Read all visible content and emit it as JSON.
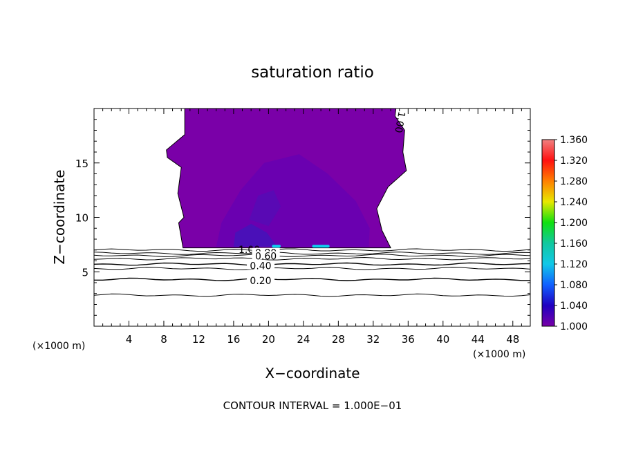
{
  "chart_data": {
    "type": "heatmap",
    "title": "saturation ratio",
    "xlabel": "X−coordinate",
    "ylabel": "Z−coordinate",
    "x_unit": "(×1000 m)",
    "x_unit_right": "(×1000 m)",
    "footer": "CONTOUR INTERVAL = 1.000E−01",
    "xlim": [
      0,
      50
    ],
    "ylim": [
      0,
      20
    ],
    "x_ticks": [
      4,
      8,
      12,
      16,
      20,
      24,
      28,
      32,
      36,
      40,
      44,
      48
    ],
    "x_tick_labels": [
      "4",
      "8",
      "12",
      "16",
      "20",
      "24",
      "28",
      "32",
      "36",
      "40",
      "44",
      "48"
    ],
    "y_ticks": [
      5,
      10,
      15
    ],
    "y_tick_labels": [
      "5",
      "10",
      "15"
    ],
    "colorbar": {
      "min": 1.0,
      "max": 1.36,
      "labels": [
        "1.360",
        "1.320",
        "1.280",
        "1.240",
        "1.200",
        "1.160",
        "1.120",
        "1.080",
        "1.040",
        "1.000"
      ],
      "colors": [
        "#f08080",
        "#ff1010",
        "#ff8000",
        "#e8e800",
        "#10e010",
        "#10c8a0",
        "#10c8e8",
        "#1060ff",
        "#2000c0",
        "#7800a8"
      ]
    },
    "region": {
      "description_value": 1.0,
      "color": "#7a00a8",
      "darker_regions": [
        {
          "value": 1.01,
          "color": "#6a00b0"
        },
        {
          "value": 1.03,
          "color": "#4a10b8"
        }
      ],
      "highlights": [
        {
          "x": [
            20.4,
            21.4
          ],
          "z": 7.35,
          "value": 1.09,
          "color": "#10d0f0"
        },
        {
          "x": [
            25.0,
            27.0
          ],
          "z": 7.35,
          "value": 1.09,
          "color": "#10d0f0"
        }
      ]
    },
    "contours": [
      {
        "z": 7.0,
        "label": "1.00"
      },
      {
        "z": 6.7,
        "label": "0.80"
      },
      {
        "z": 6.5,
        "label": "0.60"
      },
      {
        "z": 6.2,
        "label": ""
      },
      {
        "z": 5.7,
        "label": "0.40"
      },
      {
        "z": 5.3,
        "label": ""
      },
      {
        "z": 4.3,
        "label": "0.20"
      },
      {
        "z": 2.85,
        "label": ""
      }
    ],
    "top_contour_label": "1.00"
  }
}
